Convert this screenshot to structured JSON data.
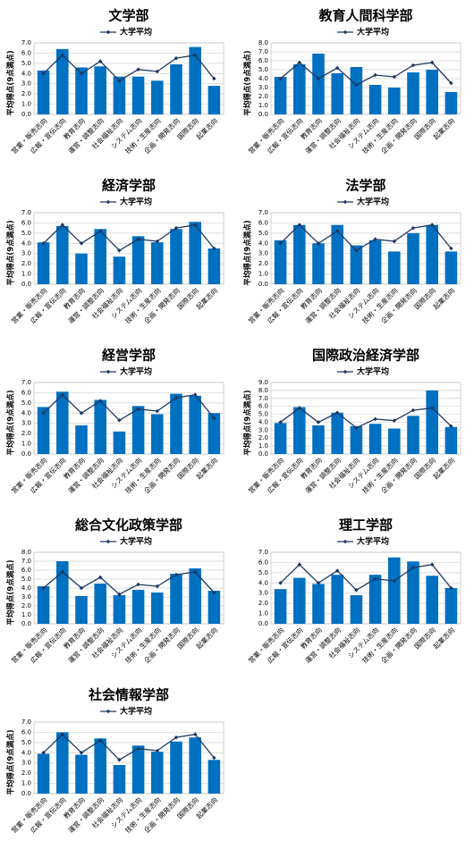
{
  "chart_data": [
    {
      "type": "bar",
      "title": "文学部",
      "y_label": "平均得点(9点満点)",
      "categories": [
        "営業・販売志向",
        "広報・宣伝志向",
        "教育志向",
        "運営・調整志向",
        "社会福祉志向",
        "システム志向",
        "技術・生産志向",
        "企画・開発志向",
        "国際志向",
        "起業志向"
      ],
      "series": [
        {
          "type": "bar",
          "color": "#0070c0",
          "values": [
            4.3,
            6.4,
            4.6,
            4.7,
            3.7,
            3.7,
            3.3,
            4.9,
            6.6,
            2.8
          ]
        },
        {
          "type": "line",
          "name": "大学平均",
          "color": "#1f3864",
          "values": [
            4.0,
            5.8,
            4.0,
            5.2,
            3.3,
            4.4,
            4.2,
            5.5,
            5.8,
            3.5
          ]
        }
      ],
      "ylim": [
        0,
        7
      ],
      "yticks": [
        {
          "value": 0,
          "label": "0.0"
        },
        {
          "value": 1,
          "label": "1.0"
        },
        {
          "value": 2,
          "label": "2.0"
        },
        {
          "value": 3,
          "label": "3.0"
        },
        {
          "value": 4,
          "label": "4.0"
        },
        {
          "value": 5,
          "label": "5.0"
        },
        {
          "value": 6,
          "label": "6.0"
        },
        {
          "value": 7,
          "label": "7.0"
        }
      ],
      "grid": true,
      "legend": "top"
    },
    {
      "type": "bar",
      "title": "教育人間科学部",
      "y_label": "平均得点(9点満点)",
      "categories": [
        "営業・販売志向",
        "広報・宣伝志向",
        "教育志向",
        "運営・調整志向",
        "社会福祉志向",
        "システム志向",
        "技術・生産志向",
        "企画・開発志向",
        "国際志向",
        "起業志向"
      ],
      "series": [
        {
          "type": "bar",
          "color": "#0070c0",
          "values": [
            4.2,
            5.6,
            6.8,
            4.6,
            5.3,
            3.3,
            3.0,
            4.7,
            5.0,
            2.5
          ]
        },
        {
          "type": "line",
          "name": "大学平均",
          "color": "#1f3864",
          "values": [
            4.0,
            5.8,
            4.0,
            5.2,
            3.3,
            4.4,
            4.2,
            5.5,
            5.8,
            3.5
          ]
        }
      ],
      "ylim": [
        0,
        8
      ],
      "yticks": [
        {
          "value": 0,
          "label": "0.0"
        },
        {
          "value": 1,
          "label": "1.0"
        },
        {
          "value": 2,
          "label": "2.0"
        },
        {
          "value": 3,
          "label": "3.0"
        },
        {
          "value": 4,
          "label": "4.0"
        },
        {
          "value": 5,
          "label": "5.0"
        },
        {
          "value": 6,
          "label": "6.0"
        },
        {
          "value": 7,
          "label": "7.0"
        },
        {
          "value": 8,
          "label": "8.0"
        }
      ],
      "grid": true,
      "legend": "top"
    },
    {
      "type": "bar",
      "title": "経済学部",
      "y_label": "平均得点(9点満点)",
      "categories": [
        "営業・販売志向",
        "広報・宣伝志向",
        "教育志向",
        "運営・調整志向",
        "社会福祉志向",
        "システム志向",
        "技術・生産志向",
        "企画・開発志向",
        "国際志向",
        "起業志向"
      ],
      "series": [
        {
          "type": "bar",
          "color": "#0070c0",
          "values": [
            4.1,
            5.7,
            3.0,
            5.4,
            2.7,
            4.7,
            4.1,
            5.4,
            6.1,
            3.5
          ]
        },
        {
          "type": "line",
          "name": "大学平均",
          "color": "#1f3864",
          "values": [
            4.0,
            5.8,
            4.0,
            5.2,
            3.3,
            4.4,
            4.2,
            5.5,
            5.8,
            3.5
          ]
        }
      ],
      "ylim": [
        0,
        7
      ],
      "yticks": [
        {
          "value": 0,
          "label": "0.0"
        },
        {
          "value": 1,
          "label": "1.0"
        },
        {
          "value": 2,
          "label": "2.0"
        },
        {
          "value": 3,
          "label": "3.0"
        },
        {
          "value": 4,
          "label": "4.0"
        },
        {
          "value": 5,
          "label": "5.0"
        },
        {
          "value": 6,
          "label": "6.0"
        },
        {
          "value": 7,
          "label": "7.0"
        }
      ],
      "grid": true,
      "legend": "top"
    },
    {
      "type": "bar",
      "title": "法学部",
      "y_label": "平均得点(9点満点)",
      "categories": [
        "営業・販売志向",
        "広報・宣伝志向",
        "教育志向",
        "運営・調整志向",
        "社会福祉志向",
        "システム志向",
        "技術・生産志向",
        "企画・開発志向",
        "国際志向",
        "起業志向"
      ],
      "series": [
        {
          "type": "bar",
          "color": "#0070c0",
          "values": [
            4.3,
            5.8,
            4.0,
            5.8,
            3.8,
            4.3,
            3.2,
            5.0,
            5.8,
            3.2
          ]
        },
        {
          "type": "line",
          "name": "大学平均",
          "color": "#1f3864",
          "values": [
            4.0,
            5.8,
            4.0,
            5.2,
            3.3,
            4.4,
            4.2,
            5.5,
            5.8,
            3.5
          ]
        }
      ],
      "ylim": [
        0,
        7
      ],
      "yticks": [
        {
          "value": 0,
          "label": "0.0"
        },
        {
          "value": 1,
          "label": "1.0"
        },
        {
          "value": 2,
          "label": "2.0"
        },
        {
          "value": 3,
          "label": "3.0"
        },
        {
          "value": 4,
          "label": "4.0"
        },
        {
          "value": 5,
          "label": "5.0"
        },
        {
          "value": 6,
          "label": "6.0"
        },
        {
          "value": 7,
          "label": "7.0"
        }
      ],
      "grid": true,
      "legend": "top"
    },
    {
      "type": "bar",
      "title": "経営学部",
      "y_label": "平均得点(9点満点)",
      "categories": [
        "営業・販売志向",
        "広報・宣伝志向",
        "教育志向",
        "運営・調整志向",
        "社会福祉志向",
        "システム志向",
        "技術・生産志向",
        "企画・開発志向",
        "国際志向",
        "起業志向"
      ],
      "series": [
        {
          "type": "bar",
          "color": "#0070c0",
          "values": [
            4.6,
            6.1,
            2.8,
            5.3,
            2.2,
            4.7,
            3.9,
            5.9,
            5.7,
            4.0
          ]
        },
        {
          "type": "line",
          "name": "大学平均",
          "color": "#1f3864",
          "values": [
            4.0,
            5.8,
            4.0,
            5.2,
            3.3,
            4.4,
            4.2,
            5.5,
            5.8,
            3.5
          ]
        }
      ],
      "ylim": [
        0,
        7
      ],
      "yticks": [
        {
          "value": 0,
          "label": "0.0"
        },
        {
          "value": 1,
          "label": "1.0"
        },
        {
          "value": 2,
          "label": "2.0"
        },
        {
          "value": 3,
          "label": "3.0"
        },
        {
          "value": 4,
          "label": "4.0"
        },
        {
          "value": 5,
          "label": "5.0"
        },
        {
          "value": 6,
          "label": "6.0"
        },
        {
          "value": 7,
          "label": "7.0"
        }
      ],
      "grid": true,
      "legend": "top"
    },
    {
      "type": "bar",
      "title": "国際政治経済学部",
      "y_label": "平均得点(9点満点)",
      "categories": [
        "営業・販売志向",
        "広報・宣伝志向",
        "教育志向",
        "運営・調整志向",
        "社会福祉志向",
        "システム志向",
        "技術・生産志向",
        "企画・開発志向",
        "国際志向",
        "起業志向"
      ],
      "series": [
        {
          "type": "bar",
          "color": "#0070c0",
          "values": [
            3.9,
            5.9,
            3.6,
            5.2,
            3.5,
            3.8,
            3.2,
            4.8,
            8.0,
            3.4
          ]
        },
        {
          "type": "line",
          "name": "大学平均",
          "color": "#1f3864",
          "values": [
            4.0,
            5.8,
            4.0,
            5.2,
            3.3,
            4.4,
            4.2,
            5.5,
            5.8,
            3.5
          ]
        }
      ],
      "ylim": [
        0,
        9
      ],
      "yticks": [
        {
          "value": 0,
          "label": "0.0"
        },
        {
          "value": 1,
          "label": "1.0"
        },
        {
          "value": 2,
          "label": "2.0"
        },
        {
          "value": 3,
          "label": "3.0"
        },
        {
          "value": 4,
          "label": "4.0"
        },
        {
          "value": 5,
          "label": "5.0"
        },
        {
          "value": 6,
          "label": "6.0"
        },
        {
          "value": 7,
          "label": "7.0"
        },
        {
          "value": 8,
          "label": "8.0"
        },
        {
          "value": 9,
          "label": "9.0"
        }
      ],
      "grid": true,
      "legend": "top"
    },
    {
      "type": "bar",
      "title": "総合文化政策学部",
      "y_label": "平均得点(9点満点)",
      "categories": [
        "営業・販売志向",
        "広報・宣伝志向",
        "教育志向",
        "運営・調整志向",
        "社会福祉志向",
        "システム志向",
        "技術・生産志向",
        "企画・開発志向",
        "国際志向",
        "起業志向"
      ],
      "series": [
        {
          "type": "bar",
          "color": "#0070c0",
          "values": [
            4.2,
            7.0,
            3.1,
            4.5,
            3.2,
            3.8,
            3.5,
            5.6,
            6.2,
            3.7
          ]
        },
        {
          "type": "line",
          "name": "大学平均",
          "color": "#1f3864",
          "values": [
            4.0,
            5.8,
            4.0,
            5.2,
            3.3,
            4.4,
            4.2,
            5.5,
            5.8,
            3.5
          ]
        }
      ],
      "ylim": [
        0,
        8
      ],
      "yticks": [
        {
          "value": 0,
          "label": "0.0"
        },
        {
          "value": 1,
          "label": "1.0"
        },
        {
          "value": 2,
          "label": "2.0"
        },
        {
          "value": 3,
          "label": "3.0"
        },
        {
          "value": 4,
          "label": "4.0"
        },
        {
          "value": 5,
          "label": "5.0"
        },
        {
          "value": 6,
          "label": "6.0"
        },
        {
          "value": 7,
          "label": "7.0"
        },
        {
          "value": 8,
          "label": "8.0"
        }
      ],
      "grid": true,
      "legend": "top"
    },
    {
      "type": "bar",
      "title": "理工学部",
      "categories": [
        "営業・販売志向",
        "広報・宣伝志向",
        "教育志向",
        "運営・調整志向",
        "社会福祉志向",
        "システム志向",
        "技術・生産志向",
        "企画・開発志向",
        "国際志向",
        "起業志向"
      ],
      "series": [
        {
          "type": "bar",
          "color": "#0070c0",
          "values": [
            3.4,
            4.5,
            3.9,
            4.8,
            2.8,
            4.8,
            6.5,
            6.1,
            4.7,
            3.5
          ]
        },
        {
          "type": "line",
          "name": "大学平均",
          "color": "#1f3864",
          "values": [
            4.0,
            5.8,
            4.0,
            5.2,
            3.3,
            4.4,
            4.2,
            5.5,
            5.8,
            3.5
          ]
        }
      ],
      "ylim": [
        0,
        7
      ],
      "yticks": [
        {
          "value": 0,
          "label": "0.0"
        },
        {
          "value": 1,
          "label": "1.0"
        },
        {
          "value": 2,
          "label": "2.0"
        },
        {
          "value": 3,
          "label": "3.0"
        },
        {
          "value": 4,
          "label": "4.0"
        },
        {
          "value": 5,
          "label": "5.0"
        },
        {
          "value": 6,
          "label": "6.0"
        },
        {
          "value": 7,
          "label": "7.0"
        }
      ],
      "grid": true,
      "legend": "top"
    },
    {
      "type": "bar",
      "title": "社会情報学部",
      "y_label": "平均得点(9点満点)",
      "categories": [
        "営業・販売志向",
        "広報・宣伝志向",
        "教育志向",
        "運営・調整志向",
        "社会福祉志向",
        "システム志向",
        "技術・生産志向",
        "企画・開発志向",
        "国際志向",
        "起業志向"
      ],
      "series": [
        {
          "type": "bar",
          "color": "#0070c0",
          "values": [
            3.9,
            6.0,
            3.8,
            5.4,
            2.8,
            4.7,
            4.1,
            5.1,
            5.5,
            3.3
          ]
        },
        {
          "type": "line",
          "name": "大学平均",
          "color": "#1f3864",
          "values": [
            4.0,
            5.8,
            4.0,
            5.2,
            3.3,
            4.4,
            4.2,
            5.5,
            5.8,
            3.5
          ]
        }
      ],
      "ylim": [
        0,
        7
      ],
      "yticks": [
        {
          "value": 0,
          "label": "0.0"
        },
        {
          "value": 1,
          "label": "1.0"
        },
        {
          "value": 2,
          "label": "2.0"
        },
        {
          "value": 3,
          "label": "3.0"
        },
        {
          "value": 4,
          "label": "4.0"
        },
        {
          "value": 5,
          "label": "5.0"
        },
        {
          "value": 6,
          "label": "6.0"
        },
        {
          "value": 7,
          "label": "7.0"
        }
      ],
      "grid": true,
      "legend": "top"
    }
  ]
}
